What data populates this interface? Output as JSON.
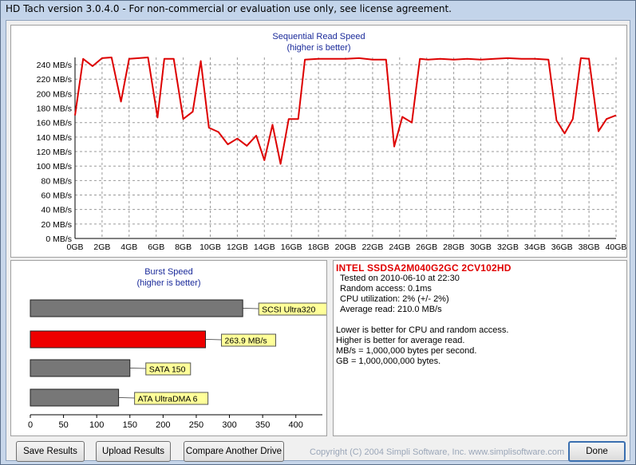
{
  "window": {
    "title": "HD Tach version 3.0.4.0  - For non-commercial or evaluation use only, see license agreement."
  },
  "colors": {
    "series": "#dd0000",
    "burst_highlight": "#ee0000",
    "burst_bar": "#777777",
    "label_bg": "#ffff99",
    "title_blue": "#1a2a9a"
  },
  "sequential": {
    "title": "Sequential Read Speed",
    "subtitle": "(higher is better)"
  },
  "burst": {
    "title": "Burst Speed",
    "subtitle": "(higher is better)"
  },
  "info": {
    "drive_name": "INTEL SSDSA2M040G2GC 2CV102HD",
    "tested_on": "Tested on 2010-06-10 at 22:30",
    "random_access": "Random access: 0.1ms",
    "cpu_util": "CPU utilization: 2% (+/- 2%)",
    "avg_read": "Average read: 210.0 MB/s",
    "notes": [
      "Lower is better for CPU and random access.",
      "Higher is better for average read.",
      "MB/s = 1,000,000 bytes per second.",
      "GB = 1,000,000,000 bytes."
    ]
  },
  "buttons": {
    "save": "Save Results",
    "upload": "Upload Results",
    "compare": "Compare Another Drive",
    "done": "Done"
  },
  "copyright": "Copyright (C) 2004 Simpli Software, Inc. www.simplisoftware.com",
  "chart_data": [
    {
      "type": "line",
      "title": "Sequential Read Speed",
      "subtitle": "(higher is better)",
      "xlabel": "",
      "ylabel": "",
      "xlim": [
        0,
        40
      ],
      "ylim": [
        0,
        250
      ],
      "x_ticks": [
        "0GB",
        "2GB",
        "4GB",
        "6GB",
        "8GB",
        "10GB",
        "12GB",
        "14GB",
        "16GB",
        "18GB",
        "20GB",
        "22GB",
        "24GB",
        "26GB",
        "28GB",
        "30GB",
        "32GB",
        "34GB",
        "36GB",
        "38GB",
        "40GB"
      ],
      "y_ticks": [
        "0 MB/s",
        "20 MB/s",
        "40 MB/s",
        "60 MB/s",
        "80 MB/s",
        "100 MB/s",
        "120 MB/s",
        "140 MB/s",
        "160 MB/s",
        "180 MB/s",
        "200 MB/s",
        "220 MB/s",
        "240 MB/s"
      ],
      "grid": true,
      "series": [
        {
          "x": [
            0,
            0.6,
            1.3,
            2,
            2.7,
            3.4,
            4,
            4.7,
            5.4,
            6.1,
            6.6,
            7.3,
            8.0,
            8.7,
            9.3,
            9.9,
            10.6,
            11.3,
            12,
            12.7,
            13.4,
            14.0,
            14.6,
            15.2,
            15.8,
            16.5,
            17,
            18,
            19,
            20,
            21,
            22,
            23,
            23.6,
            24.2,
            24.9,
            25.5,
            26.1,
            27,
            28,
            29,
            30,
            31,
            32,
            33,
            34,
            35,
            35.6,
            36.2,
            36.8,
            37.4,
            38.0,
            38.7,
            39.3,
            40
          ],
          "y": [
            170,
            248,
            238,
            249,
            250,
            189,
            248,
            249,
            250,
            167,
            248,
            248,
            165,
            175,
            245,
            153,
            147,
            130,
            138,
            128,
            142,
            108,
            157,
            103,
            165,
            165,
            247,
            248,
            248,
            248,
            249,
            247,
            247,
            127,
            168,
            160,
            248,
            247,
            248,
            247,
            248,
            247,
            248,
            249,
            248,
            248,
            247,
            163,
            145,
            165,
            249,
            248,
            148,
            165,
            170
          ]
        }
      ]
    },
    {
      "type": "bar",
      "title": "Burst Speed",
      "subtitle": "(higher is better)",
      "xlim": [
        0,
        440
      ],
      "x_ticks": [
        "0",
        "50",
        "100",
        "150",
        "200",
        "250",
        "300",
        "350",
        "400"
      ],
      "categories": [
        "SCSI Ultra320",
        "263.9 MB/s",
        "SATA 150",
        "ATA UltraDMA 6"
      ],
      "values": [
        320,
        263.9,
        150,
        133
      ]
    }
  ]
}
